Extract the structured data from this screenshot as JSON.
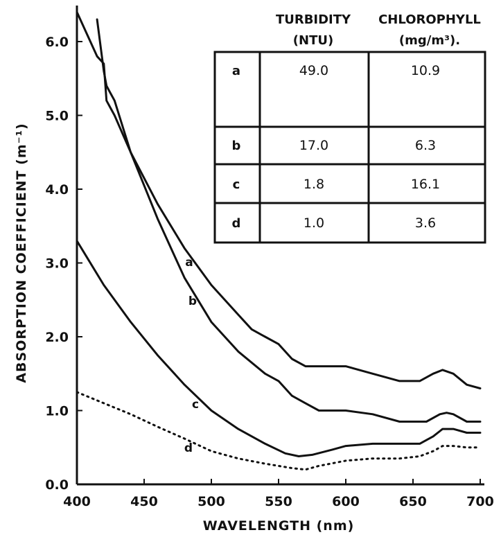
{
  "chart_data": {
    "type": "line",
    "xlabel": "WAVELENGTH (nm)",
    "ylabel": "ABSORPTION COEFFICIENT (m⁻¹)",
    "xlim": [
      400,
      700
    ],
    "ylim": [
      0,
      6.4
    ],
    "x_ticks": [
      "400",
      "450",
      "500",
      "550",
      "600",
      "650",
      "700"
    ],
    "y_ticks": [
      "0.0",
      "1.0",
      "2.0",
      "3.0",
      "4.0",
      "5.0",
      "6.0"
    ],
    "grid": false,
    "series": [
      {
        "name": "a",
        "style": "solid",
        "x": [
          415,
          420,
          422,
          425,
          428,
          440,
          460,
          480,
          500,
          520,
          530,
          540,
          550,
          560,
          570,
          580,
          600,
          620,
          640,
          655,
          665,
          672,
          680,
          690,
          700
        ],
        "y": [
          6.3,
          5.6,
          5.4,
          5.3,
          5.2,
          4.5,
          3.8,
          3.2,
          2.7,
          2.3,
          2.1,
          2.0,
          1.9,
          1.7,
          1.6,
          1.6,
          1.6,
          1.5,
          1.4,
          1.4,
          1.5,
          1.55,
          1.5,
          1.35,
          1.3
        ]
      },
      {
        "name": "b",
        "style": "solid",
        "x": [
          400,
          410,
          415,
          420,
          422,
          425,
          428,
          440,
          460,
          480,
          500,
          520,
          540,
          550,
          560,
          570,
          580,
          600,
          620,
          640,
          660,
          670,
          675,
          680,
          690,
          700
        ],
        "y": [
          6.4,
          6.0,
          5.8,
          5.7,
          5.2,
          5.1,
          5.0,
          4.5,
          3.6,
          2.8,
          2.2,
          1.8,
          1.5,
          1.4,
          1.2,
          1.1,
          1.0,
          1.0,
          0.95,
          0.85,
          0.85,
          0.95,
          0.97,
          0.95,
          0.85,
          0.85
        ]
      },
      {
        "name": "c",
        "style": "solid",
        "x": [
          400,
          420,
          440,
          460,
          480,
          500,
          520,
          540,
          555,
          565,
          575,
          590,
          600,
          620,
          640,
          655,
          665,
          672,
          680,
          690,
          700
        ],
        "y": [
          3.3,
          2.7,
          2.2,
          1.75,
          1.35,
          1.0,
          0.75,
          0.55,
          0.42,
          0.38,
          0.4,
          0.47,
          0.52,
          0.55,
          0.55,
          0.55,
          0.65,
          0.75,
          0.75,
          0.7,
          0.7
        ]
      },
      {
        "name": "d",
        "style": "dotted",
        "x": [
          400,
          420,
          440,
          460,
          480,
          500,
          520,
          540,
          560,
          570,
          580,
          600,
          620,
          640,
          655,
          665,
          672,
          680,
          690,
          700
        ],
        "y": [
          1.25,
          1.1,
          0.95,
          0.78,
          0.62,
          0.45,
          0.35,
          0.28,
          0.22,
          0.2,
          0.25,
          0.32,
          0.35,
          0.35,
          0.38,
          0.45,
          0.52,
          0.52,
          0.5,
          0.5
        ]
      }
    ],
    "table": {
      "col1_header": [
        "TURBIDITY",
        "(NTU)"
      ],
      "col2_header": [
        "CHLOROPHYLL",
        "(mg/m³)."
      ],
      "rows": [
        {
          "label": "a",
          "turbidity": "49.0",
          "chlorophyll": "10.9"
        },
        {
          "label": "b",
          "turbidity": "17.0",
          "chlorophyll": "6.3"
        },
        {
          "label": "c",
          "turbidity": "1.8",
          "chlorophyll": "16.1"
        },
        {
          "label": "d",
          "turbidity": "1.0",
          "chlorophyll": "3.6"
        }
      ]
    }
  }
}
